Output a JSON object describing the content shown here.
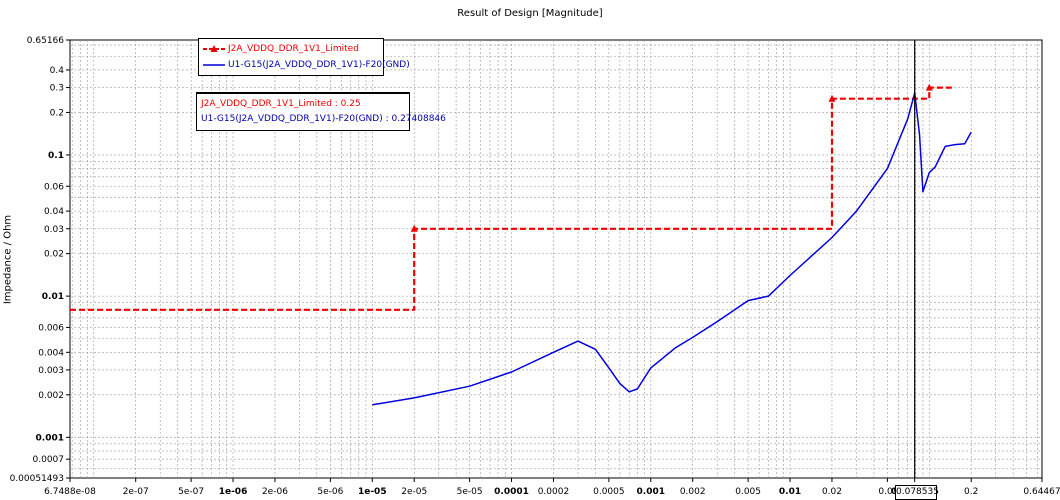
{
  "chart_data": {
    "type": "line",
    "title": "Result of Design [Magnitude]",
    "xlabel": "",
    "ylabel": "Impedance / Ohm",
    "x_scale": "log",
    "y_scale": "log",
    "xlim": [
      6.7488e-08,
      0.64467
    ],
    "ylim": [
      0.00051493,
      0.65166
    ],
    "x_ticks": [
      6.7488e-08,
      2e-07,
      5e-07,
      1e-06,
      2e-06,
      5e-06,
      1e-05,
      2e-05,
      5e-05,
      0.0001,
      0.0002,
      0.0005,
      0.001,
      0.002,
      0.005,
      0.01,
      0.02,
      0.05,
      0.078535,
      0.2,
      0.64467
    ],
    "x_tick_labels": [
      "6.7488e-08",
      "2e-07",
      "5e-07",
      "1e-06",
      "2e-06",
      "5e-06",
      "1e-05",
      "2e-05",
      "5e-05",
      "0.0001",
      "0.0002",
      "0.0005",
      "0.001",
      "0.002",
      "0.005",
      "0.01",
      "0.02",
      "0.0!",
      "0.078535",
      "0.2",
      "0.64467"
    ],
    "x_tick_bold": [
      false,
      false,
      false,
      true,
      false,
      false,
      true,
      false,
      false,
      true,
      false,
      false,
      true,
      false,
      false,
      true,
      false,
      false,
      true,
      false,
      false
    ],
    "y_ticks": [
      0.00051493,
      0.0007,
      0.001,
      0.002,
      0.003,
      0.004,
      0.006,
      0.01,
      0.02,
      0.03,
      0.04,
      0.06,
      0.1,
      0.2,
      0.3,
      0.4,
      0.65166
    ],
    "y_tick_labels": [
      "0.00051493",
      "0.0007",
      "0.001",
      "0.002",
      "0.003",
      "0.004",
      "0.006",
      "0.01",
      "0.02",
      "0.03",
      "0.04",
      "0.06",
      "0.1",
      "0.2",
      "0.3",
      "0.4",
      "0.65166"
    ],
    "y_tick_bold": [
      false,
      false,
      true,
      false,
      false,
      false,
      false,
      true,
      false,
      false,
      false,
      false,
      true,
      false,
      false,
      false,
      false
    ],
    "grid": true,
    "legend_position": "top-left",
    "series": [
      {
        "name": "J2A_VDDQ_DDR_1V1_Limited",
        "color": "#ee0000",
        "style": "dashed-step-with-triangles",
        "x": [
          6.7488e-08,
          2e-05,
          2e-05,
          0.02,
          0.02,
          0.1,
          0.1,
          0.15
        ],
        "y": [
          0.008,
          0.008,
          0.03,
          0.03,
          0.25,
          0.25,
          0.3,
          0.3
        ]
      },
      {
        "name": "U1-G15(J2A_VDDQ_DDR_1V1)-F20(GND)",
        "color": "#0000dd",
        "style": "solid",
        "x": [
          1e-05,
          2e-05,
          5e-05,
          0.0001,
          0.0002,
          0.0003,
          0.0004,
          0.0005,
          0.0006,
          0.0007,
          0.0008,
          0.001,
          0.0015,
          0.002,
          0.003,
          0.005,
          0.007,
          0.01,
          0.02,
          0.03,
          0.05,
          0.07,
          0.078535,
          0.085,
          0.09,
          0.1,
          0.11,
          0.13,
          0.15,
          0.18,
          0.2
        ],
        "y": [
          0.0017,
          0.0019,
          0.0023,
          0.0029,
          0.004,
          0.0048,
          0.0042,
          0.0031,
          0.0024,
          0.0021,
          0.0022,
          0.0031,
          0.0043,
          0.0051,
          0.0066,
          0.0093,
          0.01,
          0.014,
          0.026,
          0.04,
          0.08,
          0.18,
          0.274,
          0.14,
          0.055,
          0.075,
          0.082,
          0.115,
          0.118,
          0.12,
          0.145
        ]
      }
    ],
    "cursor": {
      "x": 0.078535,
      "label": "0.078535"
    },
    "annotation": {
      "lines": [
        {
          "text": "J2A_VDDQ_DDR_1V1_Limited : 0.25",
          "color": "#ee0000"
        },
        {
          "text": "U1-G15(J2A_VDDQ_DDR_1V1)-F20(GND) : 0.27408846",
          "color": "#0000aa"
        }
      ]
    }
  }
}
